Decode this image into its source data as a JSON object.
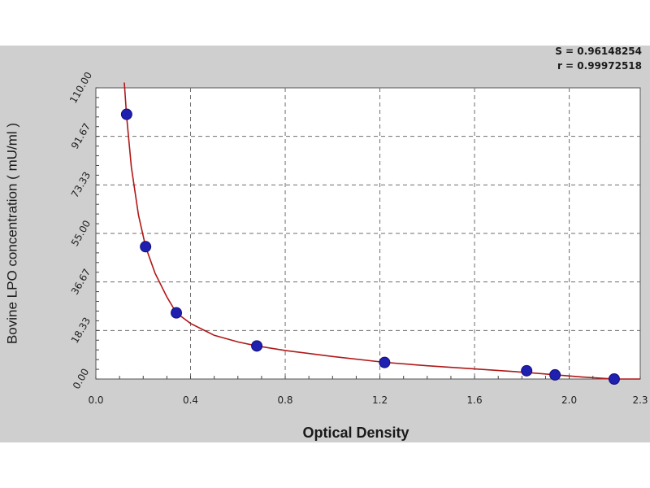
{
  "stats": {
    "s": "S = 0.96148254",
    "r": "r = 0.99972518"
  },
  "chart_data": {
    "type": "scatter",
    "title": "",
    "xlabel": "Optical Density",
    "ylabel": "Bovine LPO concentration ( mU/ml )",
    "xlim": [
      0.0,
      2.3
    ],
    "ylim": [
      0.0,
      110.0
    ],
    "xticks": [
      0.0,
      0.4,
      0.8,
      1.2,
      1.6,
      2.0,
      2.3
    ],
    "xtick_labels": [
      "0.0",
      "0.4",
      "0.8",
      "1.2",
      "1.6",
      "2.0",
      "2.3"
    ],
    "yticks": [
      0.0,
      18.33,
      36.67,
      55.0,
      73.33,
      91.67,
      110.0
    ],
    "ytick_labels": [
      "0.00",
      "18.33",
      "36.67",
      "55.00",
      "73.33",
      "91.67",
      "110.00"
    ],
    "grid": true,
    "points": [
      {
        "x": 0.13,
        "y": 100.0
      },
      {
        "x": 0.21,
        "y": 50.0
      },
      {
        "x": 0.34,
        "y": 25.0
      },
      {
        "x": 0.68,
        "y": 12.5
      },
      {
        "x": 1.22,
        "y": 6.25
      },
      {
        "x": 1.82,
        "y": 3.12
      },
      {
        "x": 1.94,
        "y": 1.56
      },
      {
        "x": 2.19,
        "y": 0.0
      }
    ],
    "fit_curve": [
      {
        "x": 0.12,
        "y": 112.0
      },
      {
        "x": 0.13,
        "y": 99.0
      },
      {
        "x": 0.15,
        "y": 80.0
      },
      {
        "x": 0.18,
        "y": 62.0
      },
      {
        "x": 0.21,
        "y": 50.0
      },
      {
        "x": 0.25,
        "y": 40.0
      },
      {
        "x": 0.3,
        "y": 31.0
      },
      {
        "x": 0.34,
        "y": 25.0
      },
      {
        "x": 0.4,
        "y": 21.0
      },
      {
        "x": 0.5,
        "y": 16.5
      },
      {
        "x": 0.6,
        "y": 14.0
      },
      {
        "x": 0.68,
        "y": 12.5
      },
      {
        "x": 0.8,
        "y": 10.8
      },
      {
        "x": 1.0,
        "y": 8.5
      },
      {
        "x": 1.22,
        "y": 6.3
      },
      {
        "x": 1.4,
        "y": 5.0
      },
      {
        "x": 1.6,
        "y": 3.8
      },
      {
        "x": 1.82,
        "y": 2.5
      },
      {
        "x": 1.94,
        "y": 1.6
      },
      {
        "x": 2.05,
        "y": 0.8
      },
      {
        "x": 2.15,
        "y": 0.2
      },
      {
        "x": 2.2,
        "y": 0.0
      },
      {
        "x": 2.3,
        "y": 0.0
      }
    ],
    "colors": {
      "curve": "#b01818",
      "point": "#1f1fb0",
      "grid": "#6e6e6e",
      "plot_bg": "#ffffff",
      "panel_bg": "#cfcfcf"
    }
  }
}
